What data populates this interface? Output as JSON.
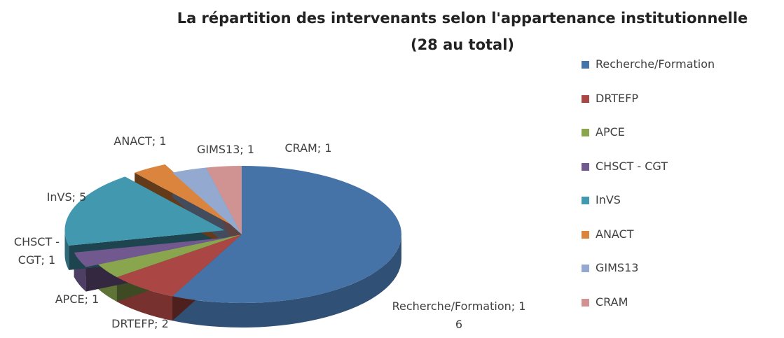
{
  "chart_data": {
    "type": "pie",
    "title": "La répartition des intervenants selon l'appartenance institutionnelle",
    "subtitle": "(28 au total)",
    "categories": [
      "Recherche/Formation",
      "DRTEFP",
      "APCE",
      "CHSCT - CGT",
      "InVS",
      "ANACT",
      "GIMS13",
      "CRAM"
    ],
    "values": [
      16,
      2,
      1,
      1,
      5,
      1,
      1,
      1
    ],
    "value_labels": [
      "Recherche/Formation; 16",
      "DRTEFP; 2",
      "APCE; 1",
      "CHSCT - CGT; 1",
      "InVS; 5",
      "ANACT; 1",
      "GIMS13; 1",
      "CRAM; 1"
    ],
    "colors": [
      "#4572a7",
      "#aa4643",
      "#89a54e",
      "#71588f",
      "#4198af",
      "#db843d",
      "#93a9cf",
      "#d19392"
    ],
    "legend": "right"
  }
}
